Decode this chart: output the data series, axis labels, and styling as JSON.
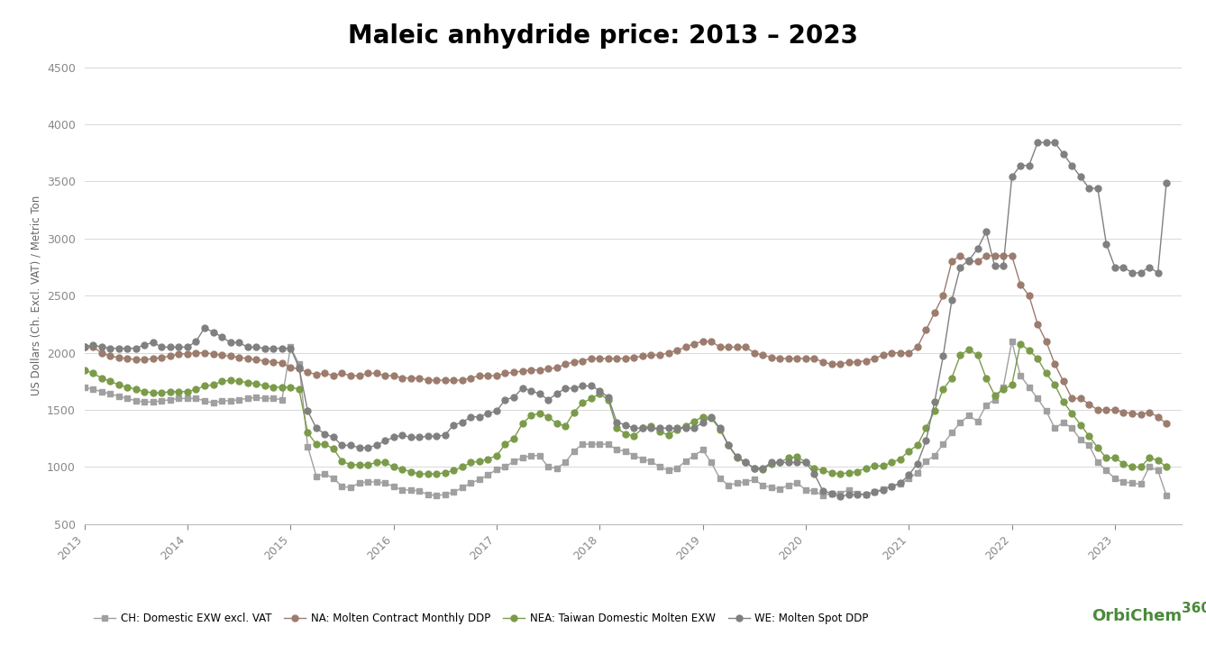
{
  "title": "Maleic anhydride price: 2013 – 2023",
  "ylabel": "US Dollars (Ch. Excl. VAT) / Metric Ton",
  "ylim": [
    500,
    4500
  ],
  "yticks": [
    500,
    1000,
    1500,
    2000,
    2500,
    3000,
    3500,
    4000,
    4500
  ],
  "series": {
    "CH": {
      "label": "CH: Domestic EXW excl. VAT",
      "color": "#a0a0a0",
      "marker": "s",
      "markersize": 4,
      "linewidth": 1.0
    },
    "NA": {
      "label": "NA: Molten Contract Monthly DDP",
      "color": "#9C7C6E",
      "marker": "o",
      "markersize": 5,
      "linewidth": 1.0
    },
    "NEA": {
      "label": "NEA: Taiwan Domestic Molten EXW",
      "color": "#7B9B4A",
      "marker": "o",
      "markersize": 5,
      "linewidth": 1.0
    },
    "WE": {
      "label": "WE: Molten Spot DDP",
      "color": "#808080",
      "marker": "o",
      "markersize": 5,
      "linewidth": 1.0
    }
  },
  "CH_x": [
    2013.0,
    2013.083,
    2013.167,
    2013.25,
    2013.333,
    2013.417,
    2013.5,
    2013.583,
    2013.667,
    2013.75,
    2013.833,
    2013.917,
    2014.0,
    2014.083,
    2014.167,
    2014.25,
    2014.333,
    2014.417,
    2014.5,
    2014.583,
    2014.667,
    2014.75,
    2014.833,
    2014.917,
    2015.0,
    2015.083,
    2015.167,
    2015.25,
    2015.333,
    2015.417,
    2015.5,
    2015.583,
    2015.667,
    2015.75,
    2015.833,
    2015.917,
    2016.0,
    2016.083,
    2016.167,
    2016.25,
    2016.333,
    2016.417,
    2016.5,
    2016.583,
    2016.667,
    2016.75,
    2016.833,
    2016.917,
    2017.0,
    2017.083,
    2017.167,
    2017.25,
    2017.333,
    2017.417,
    2017.5,
    2017.583,
    2017.667,
    2017.75,
    2017.833,
    2017.917,
    2018.0,
    2018.083,
    2018.167,
    2018.25,
    2018.333,
    2018.417,
    2018.5,
    2018.583,
    2018.667,
    2018.75,
    2018.833,
    2018.917,
    2019.0,
    2019.083,
    2019.167,
    2019.25,
    2019.333,
    2019.417,
    2019.5,
    2019.583,
    2019.667,
    2019.75,
    2019.833,
    2019.917,
    2020.0,
    2020.083,
    2020.167,
    2020.25,
    2020.333,
    2020.417,
    2020.5,
    2020.583,
    2020.667,
    2020.75,
    2020.833,
    2020.917,
    2021.0,
    2021.083,
    2021.167,
    2021.25,
    2021.333,
    2021.417,
    2021.5,
    2021.583,
    2021.667,
    2021.75,
    2021.833,
    2021.917,
    2022.0,
    2022.083,
    2022.167,
    2022.25,
    2022.333,
    2022.417,
    2022.5,
    2022.583,
    2022.667,
    2022.75,
    2022.833,
    2022.917,
    2023.0,
    2023.083,
    2023.167,
    2023.25,
    2023.333,
    2023.417,
    2023.5
  ],
  "CH_y": [
    1700,
    1680,
    1660,
    1640,
    1620,
    1600,
    1580,
    1570,
    1570,
    1580,
    1590,
    1600,
    1600,
    1600,
    1580,
    1560,
    1580,
    1580,
    1590,
    1600,
    1610,
    1600,
    1600,
    1590,
    2050,
    1900,
    1180,
    920,
    940,
    900,
    830,
    820,
    860,
    870,
    870,
    860,
    830,
    800,
    800,
    790,
    760,
    750,
    760,
    780,
    820,
    860,
    890,
    930,
    980,
    1000,
    1050,
    1080,
    1100,
    1100,
    1000,
    990,
    1040,
    1140,
    1200,
    1200,
    1200,
    1200,
    1150,
    1140,
    1100,
    1070,
    1050,
    1000,
    970,
    990,
    1050,
    1100,
    1150,
    1040,
    900,
    840,
    860,
    870,
    890,
    840,
    820,
    810,
    840,
    860,
    800,
    790,
    750,
    770,
    770,
    800,
    770,
    760,
    780,
    810,
    830,
    850,
    900,
    950,
    1050,
    1100,
    1200,
    1300,
    1390,
    1450,
    1400,
    1540,
    1590,
    1700,
    2100,
    1800,
    1700,
    1600,
    1490,
    1340,
    1390,
    1340,
    1240,
    1190,
    1040,
    970,
    900,
    870,
    860,
    850,
    1000,
    970,
    750
  ],
  "NA_x": [
    2013.0,
    2013.083,
    2013.167,
    2013.25,
    2013.333,
    2013.417,
    2013.5,
    2013.583,
    2013.667,
    2013.75,
    2013.833,
    2013.917,
    2014.0,
    2014.083,
    2014.167,
    2014.25,
    2014.333,
    2014.417,
    2014.5,
    2014.583,
    2014.667,
    2014.75,
    2014.833,
    2014.917,
    2015.0,
    2015.083,
    2015.167,
    2015.25,
    2015.333,
    2015.417,
    2015.5,
    2015.583,
    2015.667,
    2015.75,
    2015.833,
    2015.917,
    2016.0,
    2016.083,
    2016.167,
    2016.25,
    2016.333,
    2016.417,
    2016.5,
    2016.583,
    2016.667,
    2016.75,
    2016.833,
    2016.917,
    2017.0,
    2017.083,
    2017.167,
    2017.25,
    2017.333,
    2017.417,
    2017.5,
    2017.583,
    2017.667,
    2017.75,
    2017.833,
    2017.917,
    2018.0,
    2018.083,
    2018.167,
    2018.25,
    2018.333,
    2018.417,
    2018.5,
    2018.583,
    2018.667,
    2018.75,
    2018.833,
    2018.917,
    2019.0,
    2019.083,
    2019.167,
    2019.25,
    2019.333,
    2019.417,
    2019.5,
    2019.583,
    2019.667,
    2019.75,
    2019.833,
    2019.917,
    2020.0,
    2020.083,
    2020.167,
    2020.25,
    2020.333,
    2020.417,
    2020.5,
    2020.583,
    2020.667,
    2020.75,
    2020.833,
    2020.917,
    2021.0,
    2021.083,
    2021.167,
    2021.25,
    2021.333,
    2021.417,
    2021.5,
    2021.583,
    2021.667,
    2021.75,
    2021.833,
    2021.917,
    2022.0,
    2022.083,
    2022.167,
    2022.25,
    2022.333,
    2022.417,
    2022.5,
    2022.583,
    2022.667,
    2022.75,
    2022.833,
    2022.917,
    2023.0,
    2023.083,
    2023.167,
    2023.25,
    2023.333,
    2023.417,
    2023.5
  ],
  "NA_y": [
    2050,
    2050,
    2000,
    1970,
    1960,
    1950,
    1940,
    1940,
    1950,
    1960,
    1970,
    1990,
    1990,
    2000,
    2000,
    1990,
    1980,
    1970,
    1960,
    1950,
    1940,
    1930,
    1920,
    1910,
    1870,
    1860,
    1830,
    1810,
    1820,
    1800,
    1820,
    1800,
    1800,
    1820,
    1820,
    1800,
    1800,
    1780,
    1780,
    1780,
    1760,
    1760,
    1760,
    1760,
    1760,
    1780,
    1800,
    1800,
    1800,
    1820,
    1830,
    1840,
    1850,
    1850,
    1860,
    1870,
    1900,
    1920,
    1930,
    1950,
    1950,
    1950,
    1950,
    1950,
    1960,
    1970,
    1980,
    1980,
    2000,
    2020,
    2050,
    2080,
    2100,
    2100,
    2050,
    2050,
    2050,
    2050,
    2000,
    1980,
    1960,
    1950,
    1950,
    1950,
    1950,
    1950,
    1920,
    1900,
    1900,
    1920,
    1920,
    1930,
    1950,
    1980,
    2000,
    2000,
    2000,
    2050,
    2200,
    2350,
    2500,
    2800,
    2850,
    2800,
    2800,
    2850,
    2850,
    2850,
    2850,
    2600,
    2500,
    2250,
    2100,
    1900,
    1750,
    1600,
    1600,
    1550,
    1500,
    1500,
    1500,
    1480,
    1470,
    1460,
    1480,
    1440,
    1380
  ],
  "NEA_x": [
    2013.0,
    2013.083,
    2013.167,
    2013.25,
    2013.333,
    2013.417,
    2013.5,
    2013.583,
    2013.667,
    2013.75,
    2013.833,
    2013.917,
    2014.0,
    2014.083,
    2014.167,
    2014.25,
    2014.333,
    2014.417,
    2014.5,
    2014.583,
    2014.667,
    2014.75,
    2014.833,
    2014.917,
    2015.0,
    2015.083,
    2015.167,
    2015.25,
    2015.333,
    2015.417,
    2015.5,
    2015.583,
    2015.667,
    2015.75,
    2015.833,
    2015.917,
    2016.0,
    2016.083,
    2016.167,
    2016.25,
    2016.333,
    2016.417,
    2016.5,
    2016.583,
    2016.667,
    2016.75,
    2016.833,
    2016.917,
    2017.0,
    2017.083,
    2017.167,
    2017.25,
    2017.333,
    2017.417,
    2017.5,
    2017.583,
    2017.667,
    2017.75,
    2017.833,
    2017.917,
    2018.0,
    2018.083,
    2018.167,
    2018.25,
    2018.333,
    2018.417,
    2018.5,
    2018.583,
    2018.667,
    2018.75,
    2018.833,
    2018.917,
    2019.0,
    2019.083,
    2019.167,
    2019.25,
    2019.333,
    2019.417,
    2019.5,
    2019.583,
    2019.667,
    2019.75,
    2019.833,
    2019.917,
    2020.0,
    2020.083,
    2020.167,
    2020.25,
    2020.333,
    2020.417,
    2020.5,
    2020.583,
    2020.667,
    2020.75,
    2020.833,
    2020.917,
    2021.0,
    2021.083,
    2021.167,
    2021.25,
    2021.333,
    2021.417,
    2021.5,
    2021.583,
    2021.667,
    2021.75,
    2021.833,
    2021.917,
    2022.0,
    2022.083,
    2022.167,
    2022.25,
    2022.333,
    2022.417,
    2022.5,
    2022.583,
    2022.667,
    2022.75,
    2022.833,
    2022.917,
    2023.0,
    2023.083,
    2023.167,
    2023.25,
    2023.333,
    2023.417,
    2023.5
  ],
  "NEA_y": [
    1850,
    1820,
    1780,
    1750,
    1720,
    1700,
    1680,
    1660,
    1650,
    1650,
    1660,
    1660,
    1660,
    1680,
    1710,
    1720,
    1750,
    1760,
    1750,
    1740,
    1730,
    1710,
    1700,
    1700,
    1700,
    1680,
    1300,
    1200,
    1200,
    1160,
    1050,
    1020,
    1020,
    1020,
    1040,
    1040,
    1000,
    980,
    960,
    940,
    940,
    940,
    950,
    970,
    1000,
    1040,
    1050,
    1070,
    1100,
    1200,
    1250,
    1380,
    1450,
    1470,
    1440,
    1380,
    1360,
    1480,
    1560,
    1600,
    1640,
    1590,
    1340,
    1290,
    1270,
    1340,
    1360,
    1310,
    1280,
    1330,
    1360,
    1400,
    1440,
    1430,
    1330,
    1190,
    1080,
    1040,
    990,
    980,
    1030,
    1040,
    1080,
    1090,
    1040,
    990,
    970,
    950,
    940,
    950,
    960,
    990,
    1010,
    1010,
    1040,
    1070,
    1140,
    1190,
    1340,
    1490,
    1680,
    1780,
    1980,
    2030,
    1980,
    1780,
    1630,
    1680,
    1720,
    2080,
    2020,
    1950,
    1820,
    1720,
    1570,
    1470,
    1370,
    1270,
    1170,
    1080,
    1080,
    1030,
    1000,
    1000,
    1080,
    1060,
    1000
  ],
  "WE_x": [
    2013.0,
    2013.083,
    2013.167,
    2013.25,
    2013.333,
    2013.417,
    2013.5,
    2013.583,
    2013.667,
    2013.75,
    2013.833,
    2013.917,
    2014.0,
    2014.083,
    2014.167,
    2014.25,
    2014.333,
    2014.417,
    2014.5,
    2014.583,
    2014.667,
    2014.75,
    2014.833,
    2014.917,
    2015.0,
    2015.083,
    2015.167,
    2015.25,
    2015.333,
    2015.417,
    2015.5,
    2015.583,
    2015.667,
    2015.75,
    2015.833,
    2015.917,
    2016.0,
    2016.083,
    2016.167,
    2016.25,
    2016.333,
    2016.417,
    2016.5,
    2016.583,
    2016.667,
    2016.75,
    2016.833,
    2016.917,
    2017.0,
    2017.083,
    2017.167,
    2017.25,
    2017.333,
    2017.417,
    2017.5,
    2017.583,
    2017.667,
    2017.75,
    2017.833,
    2017.917,
    2018.0,
    2018.083,
    2018.167,
    2018.25,
    2018.333,
    2018.417,
    2018.5,
    2018.583,
    2018.667,
    2018.75,
    2018.833,
    2018.917,
    2019.0,
    2019.083,
    2019.167,
    2019.25,
    2019.333,
    2019.417,
    2019.5,
    2019.583,
    2019.667,
    2019.75,
    2019.833,
    2019.917,
    2020.0,
    2020.083,
    2020.167,
    2020.25,
    2020.333,
    2020.417,
    2020.5,
    2020.583,
    2020.667,
    2020.75,
    2020.833,
    2020.917,
    2021.0,
    2021.083,
    2021.167,
    2021.25,
    2021.333,
    2021.417,
    2021.5,
    2021.583,
    2021.667,
    2021.75,
    2021.833,
    2021.917,
    2022.0,
    2022.083,
    2022.167,
    2022.25,
    2022.333,
    2022.417,
    2022.5,
    2022.583,
    2022.667,
    2022.75,
    2022.833,
    2022.917,
    2023.0,
    2023.083,
    2023.167,
    2023.25,
    2023.333,
    2023.417,
    2023.5
  ],
  "WE_y": [
    2050,
    2070,
    2050,
    2040,
    2040,
    2040,
    2040,
    2070,
    2090,
    2050,
    2050,
    2050,
    2050,
    2100,
    2220,
    2180,
    2140,
    2090,
    2090,
    2050,
    2050,
    2040,
    2040,
    2040,
    2040,
    1870,
    1490,
    1340,
    1290,
    1260,
    1190,
    1190,
    1170,
    1170,
    1190,
    1230,
    1260,
    1280,
    1260,
    1260,
    1270,
    1270,
    1280,
    1370,
    1390,
    1440,
    1440,
    1470,
    1490,
    1590,
    1610,
    1690,
    1670,
    1640,
    1590,
    1640,
    1690,
    1690,
    1710,
    1710,
    1670,
    1610,
    1390,
    1370,
    1340,
    1340,
    1340,
    1340,
    1340,
    1340,
    1340,
    1340,
    1390,
    1440,
    1340,
    1190,
    1090,
    1040,
    990,
    990,
    1040,
    1040,
    1040,
    1040,
    1040,
    940,
    790,
    770,
    740,
    760,
    760,
    760,
    780,
    800,
    830,
    860,
    930,
    1030,
    1230,
    1570,
    1970,
    2460,
    2750,
    2810,
    2910,
    3060,
    2760,
    2760,
    3540,
    3640,
    3640,
    3840,
    3840,
    3840,
    3740,
    3640,
    3540,
    3440,
    3440,
    2950,
    2750,
    2750,
    2700,
    2700,
    2750,
    2700,
    3490
  ],
  "orbichem_text": "OrbiChem360",
  "orbichem_color_main": "#4a8a3a",
  "grid_color": "#d8d8d8"
}
